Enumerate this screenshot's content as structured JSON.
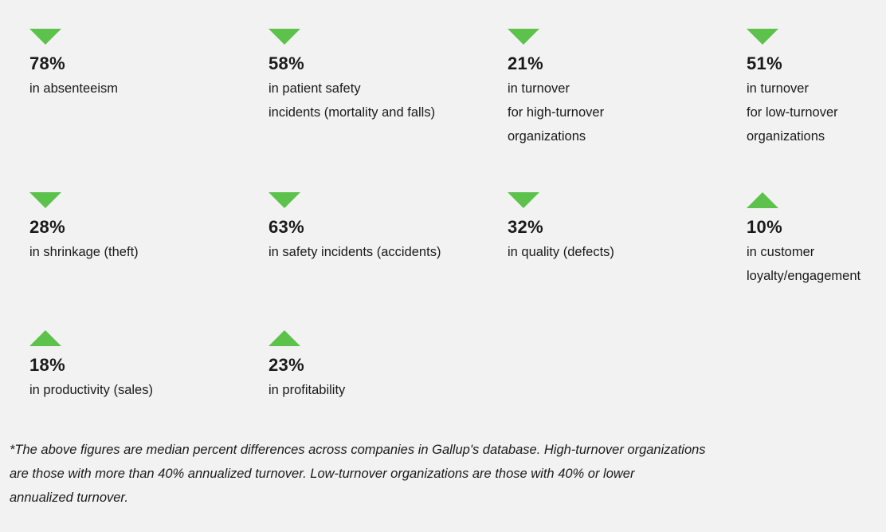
{
  "stats": [
    {
      "value": "78%",
      "direction": "down",
      "lines": [
        "in absenteeism"
      ]
    },
    {
      "value": "58%",
      "direction": "down",
      "lines": [
        "in patient safety",
        "incidents (mortality and falls)"
      ]
    },
    {
      "value": "21%",
      "direction": "down",
      "lines": [
        "in turnover",
        "for high-turnover",
        "organizations"
      ]
    },
    {
      "value": "51%",
      "direction": "down",
      "lines": [
        "in turnover",
        "for low-turnover",
        "organizations"
      ]
    },
    {
      "value": "28%",
      "direction": "down",
      "lines": [
        "in shrinkage (theft)"
      ]
    },
    {
      "value": "63%",
      "direction": "down",
      "lines": [
        "in safety incidents (accidents)"
      ]
    },
    {
      "value": "32%",
      "direction": "down",
      "lines": [
        "in quality (defects)"
      ]
    },
    {
      "value": "10%",
      "direction": "up",
      "lines": [
        "in customer",
        "loyalty/engagement"
      ]
    },
    {
      "value": "18%",
      "direction": "up",
      "lines": [
        "in productivity (sales)"
      ]
    },
    {
      "value": "23%",
      "direction": "up",
      "lines": [
        "in profitability"
      ]
    }
  ],
  "footnote": {
    "lines": [
      "*The above figures are median percent differences across companies in Gallup's database. High-turnover organizations",
      "are those with more than 40% annualized turnover. Low-turnover organizations are those with 40% or lower",
      "annualized turnover."
    ]
  },
  "colors": {
    "accent": "#5cc24c",
    "background": "#f2f2f2",
    "text": "#1a1a1a"
  }
}
